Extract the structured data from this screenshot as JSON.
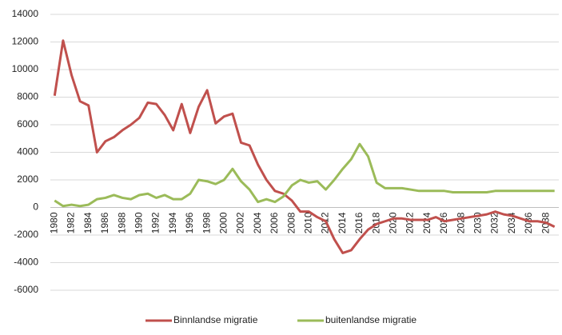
{
  "chart_data": {
    "type": "line",
    "categories": [
      "1980",
      null,
      "1982",
      null,
      "1984",
      null,
      "1986",
      null,
      "1988",
      null,
      "1990",
      null,
      "1992",
      null,
      "1994",
      null,
      "1996",
      null,
      "1998",
      null,
      "2000",
      null,
      "2002",
      null,
      "2004",
      null,
      "2006",
      null,
      "2008",
      null,
      "2010",
      null,
      "2012",
      null,
      "2014",
      null,
      "2016",
      null,
      "2018",
      null,
      "2020",
      null,
      "2022",
      null,
      "2024",
      null,
      "2026",
      null,
      "2028",
      null,
      "2030",
      null,
      "2032",
      null,
      "2034",
      null,
      "2036",
      null,
      "2038",
      null
    ],
    "series": [
      {
        "name": "Binnlandse migratie",
        "color": "#c0504d",
        "values": [
          8100,
          12100,
          9600,
          7700,
          7400,
          4000,
          4800,
          5100,
          5600,
          6000,
          6500,
          7600,
          7500,
          6700,
          5600,
          7500,
          5400,
          7300,
          8500,
          6100,
          6600,
          6800,
          4700,
          4500,
          3100,
          2000,
          1200,
          1000,
          500,
          -300,
          -300,
          -700,
          -1000,
          -2300,
          -3300,
          -3100,
          -2300,
          -1600,
          -1200,
          -1000,
          -800,
          -800,
          -900,
          -900,
          -900,
          -700,
          -1000,
          -900,
          -800,
          -700,
          -600,
          -500,
          -300,
          -500,
          -600,
          -800,
          -1000,
          -1000,
          -1100,
          -1400
        ]
      },
      {
        "name": "buitenlandse migratie",
        "color": "#9bbb59",
        "values": [
          500,
          100,
          200,
          100,
          200,
          600,
          700,
          900,
          700,
          600,
          900,
          1000,
          700,
          900,
          600,
          600,
          1000,
          2000,
          1900,
          1700,
          2000,
          2800,
          1900,
          1300,
          400,
          600,
          400,
          800,
          1600,
          2000,
          1800,
          1900,
          1300,
          2000,
          2800,
          3500,
          4600,
          3700,
          1800,
          1400,
          1400,
          1400,
          1300,
          1200,
          1200,
          1200,
          1200,
          1100,
          1100,
          1100,
          1100,
          1100,
          1200,
          1200,
          1200,
          1200,
          1200,
          1200,
          1200,
          1200
        ]
      }
    ],
    "ylim": [
      -6000,
      14000
    ],
    "yticks": [
      -6000,
      -4000,
      -2000,
      0,
      2000,
      4000,
      6000,
      8000,
      10000,
      12000,
      14000
    ],
    "grid": true,
    "legend": "bottom"
  }
}
